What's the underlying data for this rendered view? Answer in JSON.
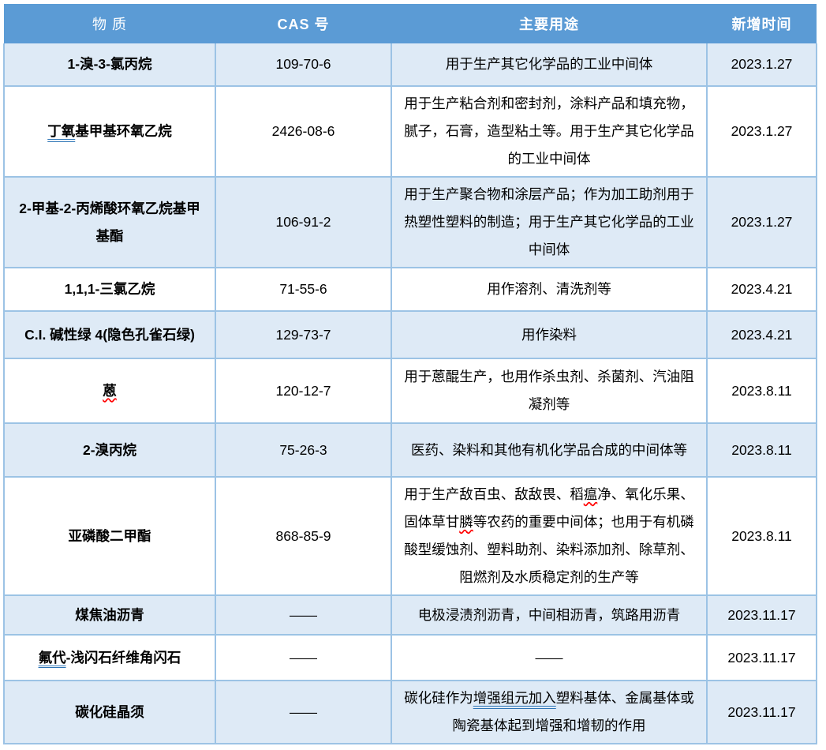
{
  "colors": {
    "header_bg": "#5B9BD5",
    "header_text": "#FFFFFF",
    "band_row_bg": "#DEEAF6",
    "plain_row_bg": "#FFFFFF",
    "border": "#9CC3E5",
    "text": "#000000",
    "underline_blue": "#2E75B6",
    "underline_red": "#FF0000"
  },
  "table": {
    "headers": [
      {
        "id": "substance",
        "label": "物 质"
      },
      {
        "id": "cas",
        "label": "CAS 号"
      },
      {
        "id": "use",
        "label": "主要用途"
      },
      {
        "id": "date",
        "label": "新增时间"
      }
    ],
    "rows": [
      {
        "substance": [
          {
            "t": "1-溴-3-氯丙烷"
          }
        ],
        "cas": "109-70-6",
        "use": [
          {
            "t": "用于生产其它化学品的工业中间体"
          }
        ],
        "date": "2023.1.27"
      },
      {
        "substance": [
          {
            "t": "丁氧",
            "u": "blue-double"
          },
          {
            "t": "基甲基环氧乙烷"
          }
        ],
        "cas": "2426-08-6",
        "use": [
          {
            "t": "用于生产粘合剂和密封剂，涂料产品和填充物，腻子，石膏，造型粘土等。用于生产其它化学品的工业中间体"
          }
        ],
        "date": "2023.1.27"
      },
      {
        "substance": [
          {
            "t": "2-甲基-2-丙烯酸环氧乙烷基甲基酯"
          }
        ],
        "cas": "106-91-2",
        "use": [
          {
            "t": "用于生产聚合物和涂层产品；作为加工助剂用于热塑性塑料的制造；用于生产其它化学品的工业中间体"
          }
        ],
        "date": "2023.1.27"
      },
      {
        "substance": [
          {
            "t": "1,1,1-三氯乙烷"
          }
        ],
        "cas": "71-55-6",
        "use": [
          {
            "t": "用作溶剂、清洗剂等"
          }
        ],
        "date": "2023.4.21"
      },
      {
        "substance": [
          {
            "t": "C.I. 碱性绿 4(隐色孔雀石绿)"
          }
        ],
        "cas": "129-73-7",
        "use": [
          {
            "t": "用作染料"
          }
        ],
        "date": "2023.4.21"
      },
      {
        "substance": [
          {
            "t": "蒽",
            "u": "red-wavy"
          }
        ],
        "cas": "120-12-7",
        "use": [
          {
            "t": "用于蒽醌生产，也用作杀虫剂、杀菌剂、汽油阻凝剂等"
          }
        ],
        "date": "2023.8.11"
      },
      {
        "substance": [
          {
            "t": "2-溴丙烷"
          }
        ],
        "cas": "75-26-3",
        "use": [
          {
            "t": "医药、染料和其他有机化学品合成的中间体等"
          }
        ],
        "date": "2023.8.11"
      },
      {
        "substance": [
          {
            "t": "亚磷酸二甲酯"
          }
        ],
        "cas": "868-85-9",
        "use": [
          {
            "t": "用于生产敌百虫、敌敌畏、稻"
          },
          {
            "t": "瘟",
            "u": "red-wavy"
          },
          {
            "t": "净、氧化乐果、固体草甘"
          },
          {
            "t": "膦",
            "u": "red-wavy"
          },
          {
            "t": "等农药的重要中间体；也用于有机磷酸型缓蚀剂、塑料助剂、染料添加剂、除草剂、阻燃剂及水质稳定剂的生产等"
          }
        ],
        "date": "2023.8.11"
      },
      {
        "substance": [
          {
            "t": "煤焦油沥青"
          }
        ],
        "cas": "——",
        "use": [
          {
            "t": "电极浸渍剂沥青，中间相沥青，筑路用沥青"
          }
        ],
        "date": "2023.11.17"
      },
      {
        "substance": [
          {
            "t": "氟代",
            "u": "blue-double"
          },
          {
            "t": "-浅闪石纤维角闪石"
          }
        ],
        "cas": "——",
        "use": [
          {
            "t": "——"
          }
        ],
        "date": "2023.11.17"
      },
      {
        "substance": [
          {
            "t": "碳化硅晶须"
          }
        ],
        "cas": "——",
        "use": [
          {
            "t": "碳化硅作为"
          },
          {
            "t": "增强组元加入",
            "u": "blue-double"
          },
          {
            "t": "塑料基体、金属基体或陶瓷基体起到增强和增韧的作用"
          }
        ],
        "date": "2023.11.17"
      }
    ]
  }
}
